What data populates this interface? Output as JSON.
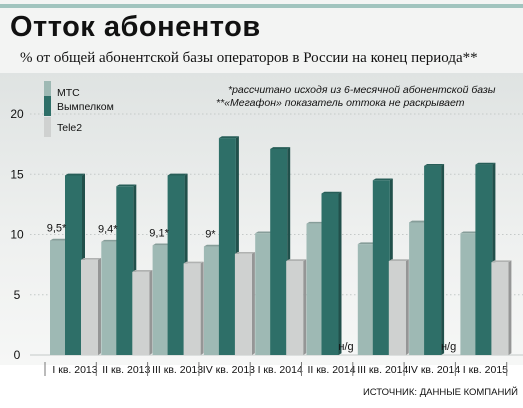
{
  "chart_data": {
    "type": "bar",
    "title": "Отток абонентов",
    "subtitle": "% от общей абонентской базы операторов в России на конец периода**",
    "categories": [
      "I кв. 2013",
      "II кв. 2013",
      "III кв. 2013",
      "IV кв. 2013",
      "I кв. 2014",
      "II кв. 2014",
      "III кв. 2014",
      "IV кв. 2014",
      "I кв. 2015"
    ],
    "series": [
      {
        "name": "МТС",
        "values": [
          9.5,
          9.4,
          9.1,
          9,
          10.1,
          10.9,
          9.2,
          11,
          10.1
        ],
        "color": "#9eb9b4"
      },
      {
        "name": "Вымпелком",
        "values": [
          14.9,
          14,
          14.9,
          18,
          17.1,
          13.4,
          14.5,
          15.7,
          15.8
        ],
        "color": "#2e6f68"
      },
      {
        "name": "Tele2",
        "values": [
          7.9,
          6.9,
          7.6,
          8.4,
          7.8,
          null,
          7.8,
          null,
          7.7
        ],
        "color": "#cfd1d0"
      }
    ],
    "data_labels": [
      {
        "category": 0,
        "text": "9,5*"
      },
      {
        "category": 1,
        "text": "9,4*"
      },
      {
        "category": 2,
        "text": "9,1*"
      },
      {
        "category": 3,
        "text": "9*"
      }
    ],
    "na_label": "н/g",
    "na_categories": [
      5,
      7
    ],
    "yticks": [
      0,
      5,
      10,
      15,
      20
    ],
    "ylim": [
      0,
      20
    ],
    "grid": true,
    "legend_position": "top-left",
    "notes": [
      "*рассчитано исходя из 6-месячной абонентской базы",
      "**«Мегафон» показатель оттока не раскрывает"
    ],
    "source": "ИСТОЧНИК: ДАННЫЕ КОМПАНИЙ"
  }
}
